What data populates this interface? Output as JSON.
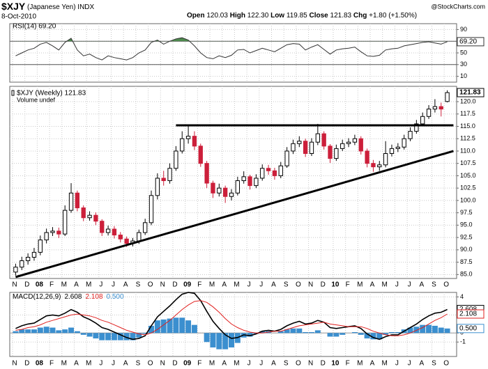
{
  "header": {
    "symbol": "$XJY",
    "name": "(Japanese Yen) INDX",
    "date": "8-Oct-2010",
    "quote": [
      {
        "label": "Open",
        "value": "120.03"
      },
      {
        "label": "High",
        "value": "122.30"
      },
      {
        "label": "Low",
        "value": "119.85"
      },
      {
        "label": "Close",
        "value": "121.83"
      },
      {
        "label": "Chg",
        "value": "+1.80 (+1.50%)"
      }
    ],
    "credit": "@StockCharts.com"
  },
  "chart_data": [
    {
      "type": "line",
      "title": "RSI(14) 69.20",
      "ylim": [
        0,
        100
      ],
      "yticks": [
        90,
        70,
        50,
        30,
        10
      ],
      "ref_lines": [
        70,
        30
      ],
      "fill_above": 70,
      "grid": true,
      "series": [
        {
          "color": "#333333",
          "fill_color": "#4e8a4e",
          "last_label": "69.20",
          "values": [
            45,
            50,
            55,
            58,
            65,
            68,
            62,
            55,
            68,
            75,
            55,
            45,
            48,
            42,
            38,
            45,
            42,
            40,
            38,
            42,
            50,
            55,
            68,
            72,
            65,
            70,
            74,
            76,
            72,
            62,
            50,
            42,
            40,
            45,
            42,
            46,
            55,
            56,
            50,
            54,
            58,
            55,
            52,
            58,
            64,
            66,
            65,
            55,
            60,
            64,
            56,
            48,
            55,
            57,
            58,
            60,
            52,
            45,
            44,
            46,
            55,
            57,
            58,
            62,
            64,
            66,
            68,
            69,
            67,
            65,
            69.2
          ]
        }
      ]
    },
    {
      "type": "candlestick",
      "title": "$XJY (Weekly) 121.83",
      "subtitle": "Volume undef",
      "last_label": "121.83",
      "up_color": "#000000",
      "down_color": "#cc1f3a",
      "grid": true,
      "ylim": [
        84.2,
        123.1
      ],
      "yticks": [
        {
          "value": 85,
          "label": "85.0"
        },
        {
          "value": 87.5,
          "label": "87.5"
        },
        {
          "value": 90,
          "label": "90.0"
        },
        {
          "value": 92.5,
          "label": "92.5"
        },
        {
          "value": 95,
          "label": "95.0"
        },
        {
          "value": 97.5,
          "label": "97.5"
        },
        {
          "value": 100,
          "label": "100.0"
        },
        {
          "value": 102.5,
          "label": "102.5"
        },
        {
          "value": 105,
          "label": "105.0"
        },
        {
          "value": 107.5,
          "label": "107.5"
        },
        {
          "value": 110,
          "label": "110.0"
        },
        {
          "value": 112.5,
          "label": "112.5"
        },
        {
          "value": 115,
          "label": "115.0"
        },
        {
          "value": 117.5,
          "label": "117.5"
        },
        {
          "value": 120,
          "label": "120.0"
        }
      ],
      "categories": [
        "N",
        null,
        "D",
        null,
        "08",
        null,
        "F",
        null,
        "M",
        null,
        "A",
        null,
        "M",
        null,
        "J",
        null,
        "J",
        null,
        "A",
        null,
        "S",
        null,
        "O",
        null,
        "N",
        null,
        "D",
        null,
        "09",
        null,
        "F",
        null,
        "M",
        null,
        "A",
        null,
        "M",
        null,
        "J",
        null,
        "J",
        null,
        "A",
        null,
        "S",
        null,
        "O",
        null,
        "N",
        null,
        "D",
        null,
        "10",
        null,
        "F",
        null,
        "M",
        null,
        "A",
        null,
        "M",
        null,
        "J",
        null,
        "J",
        null,
        "A",
        null,
        "S",
        null,
        "O"
      ],
      "open": [
        85.5,
        86.5,
        87.8,
        88.5,
        89.5,
        92.0,
        93.5,
        93.8,
        93.2,
        98.0,
        101.5,
        98.5,
        96.5,
        97.0,
        95.8,
        93.5,
        94.2,
        93.0,
        92.2,
        91.3,
        91.8,
        93.5,
        95.5,
        101.0,
        104.5,
        104.0,
        106.5,
        110.0,
        112.5,
        113.0,
        111.0,
        107.5,
        103.5,
        101.5,
        102.5,
        100.8,
        101.5,
        104.0,
        104.8,
        103.0,
        104.5,
        106.5,
        106.0,
        105.0,
        107.0,
        110.0,
        111.5,
        112.0,
        109.5,
        111.8,
        113.5,
        111.0,
        108.5,
        110.5,
        111.5,
        111.8,
        112.5,
        110.0,
        107.5,
        106.8,
        107.2,
        109.5,
        110.5,
        110.8,
        112.5,
        114.0,
        115.5,
        117.0,
        118.5,
        119.0,
        120.03
      ],
      "high": [
        87.2,
        88.6,
        89.3,
        90.4,
        92.9,
        94.3,
        94.6,
        94.5,
        99.0,
        103.5,
        102.0,
        99.0,
        97.8,
        97.6,
        96.2,
        94.9,
        94.8,
        93.6,
        92.7,
        92.4,
        94.1,
        96.3,
        102.0,
        105.5,
        106.0,
        107.5,
        111.0,
        114.0,
        115.0,
        114.0,
        111.5,
        108.0,
        104.0,
        103.4,
        103.0,
        102.3,
        104.8,
        105.9,
        105.2,
        105.3,
        107.3,
        107.2,
        106.6,
        107.8,
        110.8,
        112.3,
        113.0,
        112.5,
        112.6,
        115.5,
        114.0,
        111.4,
        111.3,
        112.3,
        112.6,
        113.3,
        113.0,
        110.5,
        108.2,
        108.0,
        112.0,
        111.3,
        111.6,
        113.3,
        114.8,
        116.3,
        117.8,
        119.3,
        120.5,
        119.8,
        122.3
      ],
      "low": [
        84.8,
        85.9,
        87.0,
        87.8,
        88.9,
        91.3,
        92.8,
        92.4,
        92.8,
        97.5,
        97.8,
        95.8,
        95.9,
        95.0,
        92.8,
        92.9,
        92.3,
        91.5,
        90.6,
        90.7,
        91.2,
        93.0,
        95.0,
        100.2,
        103.0,
        103.4,
        106.0,
        109.5,
        111.5,
        110.2,
        106.8,
        102.5,
        100.5,
        100.8,
        99.5,
        100.0,
        101.0,
        103.4,
        102.2,
        102.5,
        104.0,
        105.2,
        104.2,
        104.5,
        106.6,
        109.4,
        110.8,
        108.8,
        109.0,
        111.2,
        110.3,
        107.6,
        108.0,
        110.0,
        110.8,
        111.2,
        109.3,
        106.7,
        105.8,
        106.0,
        106.7,
        108.9,
        109.8,
        110.3,
        112.0,
        113.5,
        115.0,
        116.5,
        117.8,
        117.0,
        119.85
      ],
      "close": [
        86.5,
        87.8,
        88.5,
        89.5,
        92.0,
        93.5,
        93.8,
        93.2,
        98.0,
        101.5,
        98.5,
        96.5,
        97.0,
        95.8,
        93.5,
        94.2,
        93.0,
        92.2,
        91.3,
        91.8,
        93.5,
        95.5,
        101.0,
        104.5,
        104.0,
        106.5,
        110.0,
        112.5,
        113.0,
        111.0,
        107.5,
        103.5,
        101.5,
        102.5,
        100.8,
        101.5,
        104.0,
        104.8,
        103.0,
        104.5,
        106.5,
        106.0,
        105.0,
        107.0,
        110.0,
        111.5,
        112.0,
        109.5,
        111.8,
        113.5,
        111.0,
        108.5,
        110.5,
        111.5,
        111.8,
        112.5,
        110.0,
        107.5,
        106.8,
        107.2,
        109.5,
        110.5,
        110.8,
        112.5,
        114.0,
        115.5,
        117.0,
        118.5,
        119.0,
        118.5,
        121.83
      ],
      "trendlines": [
        {
          "x": [
            26,
            71
          ],
          "values": [
            115.2,
            115.2
          ],
          "color": "#000000"
        },
        {
          "x": [
            0,
            71
          ],
          "values": [
            84.5,
            110.0
          ],
          "color": "#000000"
        }
      ]
    },
    {
      "type": "macd",
      "title": "MACD(12,26,9)",
      "ylim": [
        -2.6,
        4.5
      ],
      "yticks": [
        -1,
        0,
        2,
        4
      ],
      "grid": true,
      "series": [
        {
          "style": "histogram",
          "color": "#3b8fcf",
          "last_label": "0.500",
          "values": [
            0.2,
            0.4,
            0.4,
            0.4,
            0.6,
            0.7,
            0.6,
            0.3,
            0.4,
            0.6,
            0.2,
            -0.2,
            -0.4,
            -0.6,
            -0.8,
            -0.8,
            -0.8,
            -0.8,
            -0.8,
            -0.8,
            -0.5,
            -0.1,
            0.8,
            1.4,
            1.5,
            1.6,
            1.7,
            1.7,
            1.4,
            0.9,
            0.0,
            -1.0,
            -1.6,
            -1.8,
            -1.8,
            -1.6,
            -1.1,
            -0.5,
            -0.4,
            -0.1,
            0.2,
            0.2,
            0.0,
            0.2,
            0.4,
            0.5,
            0.5,
            0.1,
            0.1,
            0.3,
            0.0,
            -0.4,
            -0.4,
            -0.2,
            0.0,
            0.1,
            -0.2,
            -0.6,
            -0.7,
            -0.7,
            -0.2,
            0.1,
            0.1,
            0.4,
            0.6,
            0.7,
            0.9,
            0.9,
            0.8,
            0.6,
            0.5
          ]
        },
        {
          "style": "line",
          "color": "#000000",
          "last_label": "2.608",
          "values": [
            0.5,
            0.8,
            1.0,
            1.1,
            1.5,
            1.9,
            2.0,
            1.9,
            2.2,
            2.6,
            2.3,
            1.8,
            1.5,
            1.1,
            0.6,
            0.4,
            0.1,
            -0.2,
            -0.5,
            -0.7,
            -0.6,
            -0.3,
            0.8,
            1.8,
            2.4,
            3.0,
            3.7,
            4.3,
            4.5,
            4.4,
            3.6,
            2.4,
            1.3,
            0.5,
            -0.2,
            -0.6,
            -0.5,
            -0.2,
            -0.3,
            -0.1,
            0.2,
            0.3,
            0.2,
            0.4,
            0.8,
            1.1,
            1.3,
            1.0,
            1.1,
            1.4,
            1.2,
            0.6,
            0.5,
            0.6,
            0.7,
            0.8,
            0.5,
            -0.1,
            -0.5,
            -0.7,
            -0.4,
            -0.2,
            -0.2,
            0.2,
            0.6,
            1.0,
            1.5,
            1.9,
            2.2,
            2.3,
            2.608
          ]
        },
        {
          "style": "line",
          "color": "#e0201f",
          "last_label": "2.108",
          "values": [
            0.3,
            0.4,
            0.6,
            0.7,
            0.9,
            1.2,
            1.4,
            1.6,
            1.8,
            2.0,
            2.1,
            2.0,
            1.9,
            1.7,
            1.4,
            1.2,
            0.9,
            0.6,
            0.3,
            0.1,
            -0.1,
            -0.2,
            0.0,
            0.4,
            0.9,
            1.4,
            2.0,
            2.6,
            3.1,
            3.5,
            3.6,
            3.4,
            2.9,
            2.3,
            1.6,
            1.0,
            0.6,
            0.3,
            0.1,
            0.0,
            0.0,
            0.1,
            0.2,
            0.2,
            0.4,
            0.6,
            0.8,
            0.9,
            1.0,
            1.1,
            1.2,
            1.0,
            0.9,
            0.8,
            0.7,
            0.7,
            0.7,
            0.5,
            0.2,
            0.0,
            -0.2,
            -0.3,
            -0.3,
            -0.2,
            0.0,
            0.3,
            0.6,
            1.0,
            1.4,
            1.7,
            2.108
          ]
        }
      ]
    }
  ]
}
